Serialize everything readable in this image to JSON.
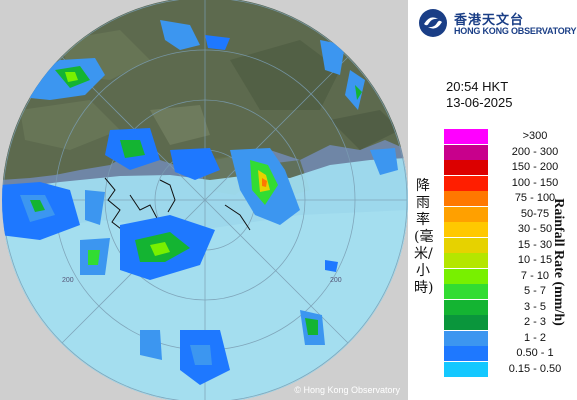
{
  "header": {
    "logo_cn": "香港天文台",
    "logo_en": "HONG KONG OBSERVATORY"
  },
  "radar": {
    "time": "20:54 HKT",
    "date": "13-06-2025",
    "copyright": "© Hong Kong Observatory",
    "range_ring_label": "200"
  },
  "legend": {
    "title_cn": "降雨率(毫米/小時)",
    "title_en": "Rainfall Rate (mm/h)",
    "items": [
      {
        "label": ">300",
        "color": "#ff00ff"
      },
      {
        "label": "200 - 300",
        "color": "#c8008c"
      },
      {
        "label": "150 - 200",
        "color": "#dc0000"
      },
      {
        "label": "100 - 150",
        "color": "#ff1e00"
      },
      {
        "label": "75 - 100",
        "color": "#ff7800"
      },
      {
        "label": "50-75",
        "color": "#ffa000"
      },
      {
        "label": "30 - 50",
        "color": "#ffc800"
      },
      {
        "label": "15 - 30",
        "color": "#e6d200"
      },
      {
        "label": "10 - 15",
        "color": "#b4e600"
      },
      {
        "label": "7 - 10",
        "color": "#78f000"
      },
      {
        "label": "5 - 7",
        "color": "#32dc32"
      },
      {
        "label": "3 - 5",
        "color": "#14b432"
      },
      {
        "label": "2 - 3",
        "color": "#0a963c"
      },
      {
        "label": "1 - 2",
        "color": "#3c96f0"
      },
      {
        "label": "0.50 - 1",
        "color": "#1e78ff"
      },
      {
        "label": "0.15 - 0.50",
        "color": "#14c8ff"
      }
    ]
  },
  "colors": {
    "land": "#5d6a4e",
    "sea": "#6f86a6",
    "coverage": "#9fdcef",
    "ring": "#7a9db2",
    "brand": "#1a3e86"
  }
}
